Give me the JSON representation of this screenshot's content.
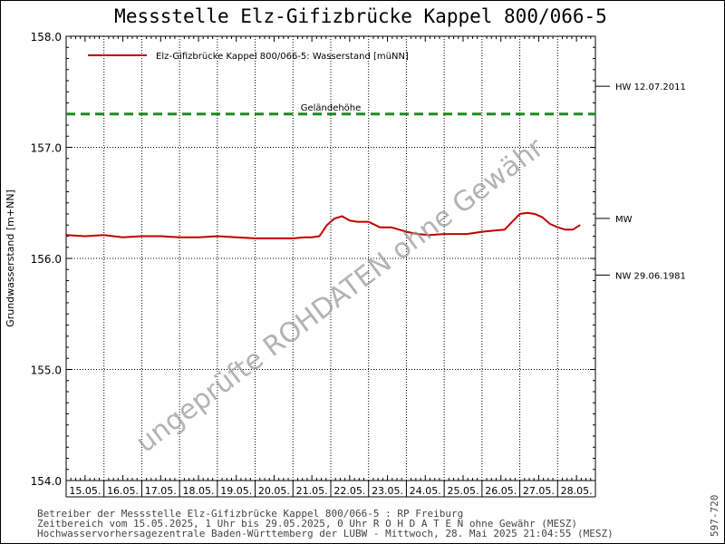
{
  "chart_data": {
    "type": "line",
    "title": "Messstelle Elz-Gifizbrücke Kappel 800/066-5",
    "ylabel": "Grundwasserstand [m+NN]",
    "ylim": [
      154.0,
      158.0
    ],
    "yticks": [
      "154.0",
      "155.0",
      "156.0",
      "157.0",
      "158.0"
    ],
    "categories": [
      "15.05.",
      "16.05.",
      "17.05.",
      "18.05.",
      "19.05.",
      "20.05.",
      "21.05.",
      "22.05.",
      "23.05.",
      "24.05.",
      "25.05.",
      "26.05.",
      "27.05.",
      "28.05."
    ],
    "legend_position": "top-left",
    "grid": true,
    "series": [
      {
        "name": "Elz-Gifizbrücke Kappel 800/066-5: Wasserstand  [müNN]",
        "color": "#c00000",
        "x": [
          0,
          0.5,
          1.0,
          1.5,
          2.0,
          2.5,
          3.0,
          3.5,
          4.0,
          4.5,
          5.0,
          5.5,
          6.0,
          6.3,
          6.5,
          6.7,
          6.9,
          7.1,
          7.3,
          7.5,
          7.7,
          8.0,
          8.3,
          8.6,
          9.0,
          9.3,
          9.6,
          10.0,
          10.3,
          10.6,
          11.0,
          11.3,
          11.6,
          11.8,
          12.0,
          12.2,
          12.4,
          12.6,
          12.8,
          13.0,
          13.2,
          13.4,
          13.6
        ],
        "y": [
          156.21,
          156.2,
          156.21,
          156.19,
          156.2,
          156.2,
          156.19,
          156.19,
          156.2,
          156.19,
          156.18,
          156.18,
          156.18,
          156.19,
          156.19,
          156.2,
          156.3,
          156.36,
          156.38,
          156.34,
          156.33,
          156.33,
          156.28,
          156.28,
          156.24,
          156.22,
          156.21,
          156.22,
          156.22,
          156.22,
          156.24,
          156.25,
          156.26,
          156.33,
          156.4,
          156.41,
          156.4,
          156.37,
          156.31,
          156.28,
          156.26,
          156.26,
          156.3
        ]
      }
    ],
    "reference_lines": [
      {
        "label": "Geländehöhe",
        "value": 157.3,
        "color": "#1e8c1e"
      }
    ],
    "right_markers": [
      {
        "label": "HW 12.07.2011",
        "value": 157.55
      },
      {
        "label": "MW",
        "value": 156.36
      },
      {
        "label": "NW 29.06.1981",
        "value": 155.85
      }
    ],
    "watermark": "ungeprüfte ROHDATEN ohne Gewähr"
  },
  "footer": {
    "line1": "Betreiber der Messstelle Elz-Gifizbrücke Kappel 800/066-5 : RP Freiburg",
    "line2": "Zeitbereich vom 15.05.2025, 1 Uhr bis 29.05.2025, 0 Uhr   R O H D A T E N ohne Gewähr (MESZ)",
    "line3": "Hochwasservorhersagezentrale Baden-Württemberg der LUBW -  Mittwoch, 28. Mai 2025 21:04:55 (MESZ)",
    "code": "597-720"
  }
}
